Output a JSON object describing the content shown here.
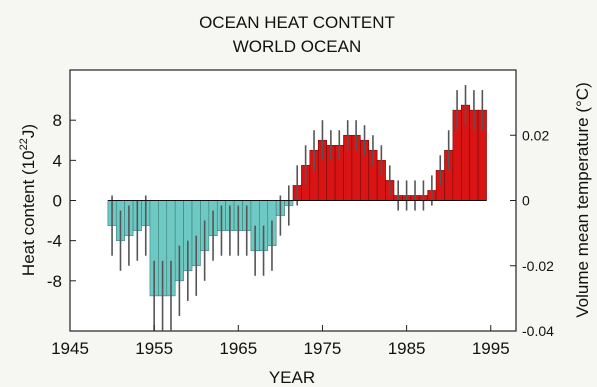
{
  "chart_data": {
    "type": "bar",
    "title": "OCEAN HEAT CONTENT",
    "subtitle": "WORLD OCEAN",
    "xlabel": "YEAR",
    "ylabel": "Heat content (10",
    "ylabel_sup": "22",
    "ylabel_unit": "J)",
    "y2label": "Volume mean temperature (°C)",
    "xlim": [
      1945,
      1998
    ],
    "ylim": [
      -13,
      13
    ],
    "xticks": [
      1945,
      1955,
      1965,
      1975,
      1985,
      1995
    ],
    "yticks": [
      "8",
      "4",
      "0",
      "-4",
      "-8"
    ],
    "ytick_values": [
      8,
      4,
      0,
      -4,
      -8
    ],
    "y2ticks": [
      "0.02",
      "0",
      "-0.02",
      "-0.04"
    ],
    "y2tick_values": [
      6.5,
      0,
      -6.5,
      -13
    ],
    "grid": false,
    "positive_color": "#d81414",
    "negative_color": "#6ec9c4",
    "error_color": "#555555",
    "series": [
      {
        "x": [
          1950,
          1951,
          1952,
          1953,
          1954,
          1955,
          1956,
          1957,
          1958,
          1959,
          1960,
          1961,
          1962,
          1963,
          1964,
          1965,
          1966,
          1967,
          1968,
          1969,
          1970,
          1971,
          1972,
          1973,
          1974,
          1975,
          1976,
          1977,
          1978,
          1979,
          1980,
          1981,
          1982,
          1983,
          1984,
          1985,
          1986,
          1987,
          1988,
          1989,
          1990,
          1991,
          1992,
          1993,
          1994
        ],
        "values": [
          -2.5,
          -4.0,
          -3.5,
          -3.0,
          -2.5,
          -9.5,
          -9.5,
          -9.5,
          -8.0,
          -7.0,
          -6.5,
          -5.0,
          -3.5,
          -3.0,
          -3.0,
          -3.0,
          -3.0,
          -5.0,
          -5.0,
          -4.5,
          -1.5,
          -0.5,
          1.5,
          3.5,
          5.0,
          6.0,
          5.5,
          5.5,
          6.5,
          6.5,
          6.0,
          5.0,
          4.0,
          2.0,
          0.5,
          0.5,
          0.5,
          0.5,
          1.0,
          3.0,
          5.0,
          9.0,
          9.5,
          9.0,
          9.0
        ],
        "errors": [
          3.0,
          3.0,
          3.0,
          3.0,
          3.0,
          3.5,
          3.5,
          3.5,
          3.5,
          3.0,
          3.0,
          3.0,
          2.5,
          2.5,
          2.5,
          2.5,
          2.5,
          2.5,
          2.5,
          2.5,
          2.0,
          2.0,
          2.0,
          2.0,
          2.0,
          2.0,
          1.5,
          1.5,
          1.5,
          1.5,
          1.5,
          1.5,
          1.5,
          1.5,
          1.5,
          1.5,
          1.5,
          1.5,
          1.5,
          1.5,
          2.0,
          2.0,
          2.0,
          2.0,
          2.0
        ]
      }
    ]
  }
}
